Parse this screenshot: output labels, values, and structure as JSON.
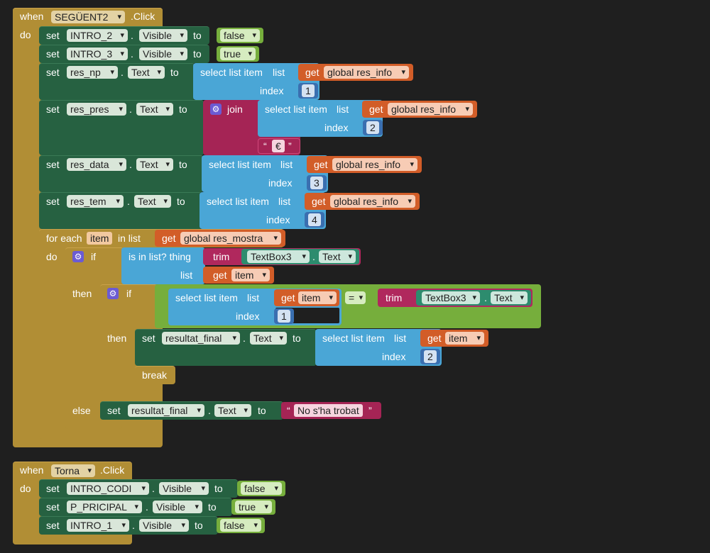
{
  "kw": {
    "when": "when",
    "do": "do",
    "set": "set",
    "to": "to",
    "dot": ".",
    "click": ".Click",
    "select_list_item": "select list item",
    "list": "list",
    "index": "index",
    "get": "get",
    "join": "join",
    "for_each": "for each",
    "in_list": "in list",
    "if": "if",
    "then": "then",
    "else": "else",
    "is_in_list": "is in list? thing",
    "trim": "trim",
    "break": "break",
    "eq": "=",
    "quote_open": "“",
    "quote_close": "”",
    "gear": "⚙"
  },
  "event1": {
    "component": "SEGÜENT2",
    "s1": {
      "component": "INTRO_2",
      "prop": "Visible",
      "value": "false"
    },
    "s2": {
      "component": "INTRO_3",
      "prop": "Visible",
      "value": "true"
    },
    "s3": {
      "component": "res_np",
      "prop": "Text",
      "var": "global res_info",
      "index": "1"
    },
    "s4": {
      "component": "res_pres",
      "prop": "Text",
      "var": "global res_info",
      "index": "2",
      "text": "€"
    },
    "s5": {
      "component": "res_data",
      "prop": "Text",
      "var": "global res_info",
      "index": "3"
    },
    "s6": {
      "component": "res_tem",
      "prop": "Text",
      "var": "global res_info",
      "index": "4"
    },
    "loop": {
      "var": "item",
      "list_var": "global res_mostra",
      "cond_component": "TextBox3",
      "cond_prop": "Text",
      "cond_var": "item",
      "inner_var": "item",
      "inner_index": "1",
      "inner_component": "TextBox3",
      "inner_prop": "Text",
      "then_component": "resultat_final",
      "then_prop": "Text",
      "then_var": "item",
      "then_index": "2",
      "else_component": "resultat_final",
      "else_prop": "Text",
      "else_text": "No s'ha trobat"
    }
  },
  "event2": {
    "component": "Torna",
    "s1": {
      "component": "INTRO_CODI",
      "prop": "Visible",
      "value": "false"
    },
    "s2": {
      "component": "P_PRICIPAL",
      "prop": "Visible",
      "value": "true"
    },
    "s3": {
      "component": "INTRO_1",
      "prop": "Visible",
      "value": "false"
    }
  }
}
